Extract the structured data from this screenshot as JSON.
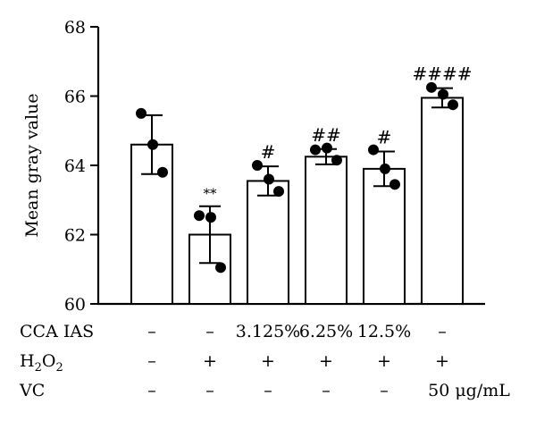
{
  "chart_data": {
    "type": "bar",
    "ylabel": "Mean gray value",
    "ylim": [
      60,
      68
    ],
    "yticks": [
      "60",
      "62",
      "64",
      "66",
      "68"
    ],
    "error_bars": "mean ± SD",
    "bars": [
      {
        "value": 64.6,
        "err": 0.85,
        "points": [
          65.5,
          64.6,
          63.8
        ],
        "annotation": ""
      },
      {
        "value": 62.0,
        "err": 0.82,
        "points": [
          62.55,
          62.5,
          61.05
        ],
        "annotation": "**"
      },
      {
        "value": 63.55,
        "err": 0.42,
        "points": [
          64.0,
          63.6,
          63.25
        ],
        "annotation": "#"
      },
      {
        "value": 64.25,
        "err": 0.22,
        "points": [
          64.45,
          64.5,
          64.15
        ],
        "annotation": "##"
      },
      {
        "value": 63.9,
        "err": 0.5,
        "points": [
          64.45,
          63.9,
          63.45
        ],
        "annotation": "#"
      },
      {
        "value": 65.95,
        "err": 0.28,
        "points": [
          66.25,
          66.05,
          65.75
        ],
        "annotation": "####"
      }
    ],
    "table": [
      {
        "label": "CCA IAS",
        "cells": [
          "–",
          "–",
          "3.125%",
          "6.25%",
          "12.5%",
          "–"
        ]
      },
      {
        "label_main": "H",
        "label_sub": "2",
        "label_mid": "O",
        "label_sub2": "2",
        "cells": [
          "–",
          "+",
          "+",
          "+",
          "+",
          "+"
        ]
      },
      {
        "label": "VC",
        "cells": [
          "–",
          "–",
          "–",
          "–",
          "–",
          "50 μg/mL"
        ]
      }
    ]
  }
}
